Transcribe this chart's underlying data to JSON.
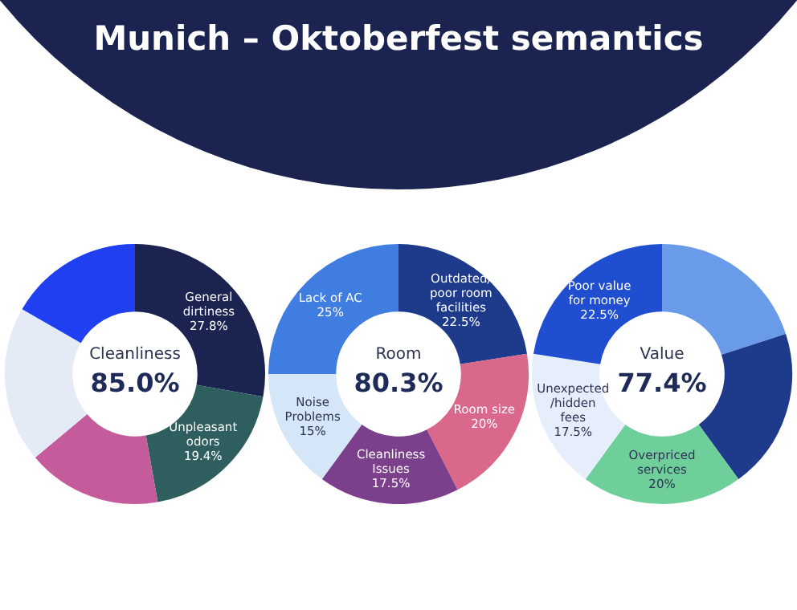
{
  "chart_data": [
    {
      "type": "donut",
      "annotations": [
        "Cleanliness",
        "85.0%"
      ],
      "categories": [
        "General dirtiness",
        "Unpleasant odors",
        null,
        null,
        null
      ],
      "values": [
        27.8,
        19.4,
        16.7,
        19.4,
        16.7
      ],
      "value_labels": [
        "27.8%",
        "19.4%",
        null,
        null,
        null
      ],
      "colors": [
        "#1b2350",
        "#2e5e5e",
        "#c45b9b",
        "#e4ebf7",
        "#1f3ff0"
      ],
      "legend": false
    },
    {
      "type": "donut",
      "title": "Munich – Oktoberfest semantics",
      "annotations": [
        "Room",
        "80.3%"
      ],
      "categories": [
        "Outdated/ poor room facilities",
        "Room size",
        "Cleanliness Issues",
        "Noise Problems",
        "Lack of AC"
      ],
      "values": [
        22.5,
        20,
        17.5,
        15,
        25
      ],
      "value_labels": [
        "22.5%",
        "20%",
        "17.5%",
        "15%",
        "25%"
      ],
      "colors": [
        "#1e3a8a",
        "#d9688a",
        "#7b3f8c",
        "#d5e6f8",
        "#3f7de0"
      ],
      "legend": false
    },
    {
      "type": "donut",
      "annotations": [
        "Value",
        "77.4%"
      ],
      "categories": [
        null,
        null,
        "Overpriced services",
        "Unexpected /hidden fees",
        "Poor value for money"
      ],
      "values": [
        20,
        20,
        20,
        17.5,
        22.5
      ],
      "value_labels": [
        null,
        null,
        "20%",
        "17.5%",
        "22.5%"
      ],
      "colors": [
        "#6a9be8",
        "#1e3a8a",
        "#6fcf9a",
        "#e6eefb",
        "#1f4fd0"
      ],
      "legend": false
    }
  ]
}
